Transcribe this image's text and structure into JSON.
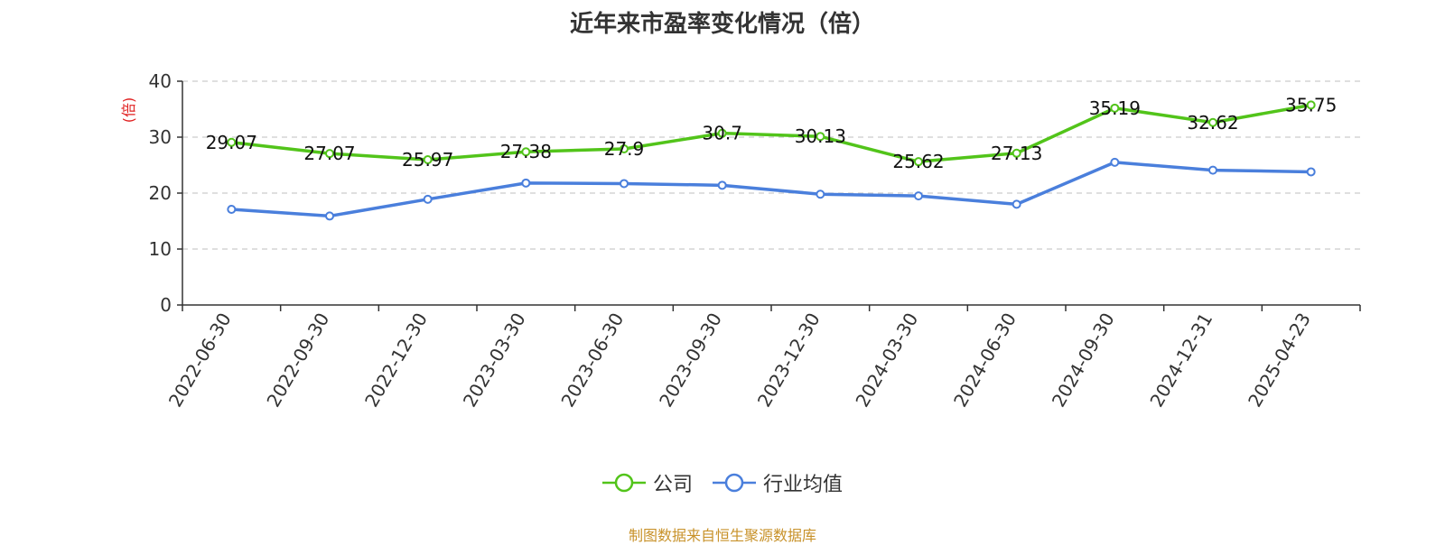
{
  "chart_data": {
    "type": "line",
    "title": "近年来市盈率变化情况（倍）",
    "ylabel": "(倍)",
    "xlabel": "",
    "ylim": [
      0,
      40
    ],
    "yticks": [
      0,
      10,
      20,
      30,
      40
    ],
    "grid": true,
    "legend_position": "bottom",
    "categories": [
      "2022-06-30",
      "2022-09-30",
      "2022-12-30",
      "2023-03-30",
      "2023-06-30",
      "2023-09-30",
      "2023-12-30",
      "2024-03-30",
      "2024-06-30",
      "2024-09-30",
      "2024-12-31",
      "2025-04-23"
    ],
    "series": [
      {
        "name": "公司",
        "color": "#52c41a",
        "show_labels": true,
        "values": [
          29.07,
          27.07,
          25.97,
          27.38,
          27.9,
          30.7,
          30.13,
          25.62,
          27.13,
          35.19,
          32.62,
          35.75
        ]
      },
      {
        "name": "行业均值",
        "color": "#4a7fdc",
        "show_labels": false,
        "values": [
          17.1,
          15.9,
          18.9,
          21.8,
          21.7,
          21.4,
          19.8,
          19.5,
          18.0,
          25.5,
          24.1,
          23.8
        ]
      }
    ]
  },
  "source_note": "制图数据来自恒生聚源数据库"
}
